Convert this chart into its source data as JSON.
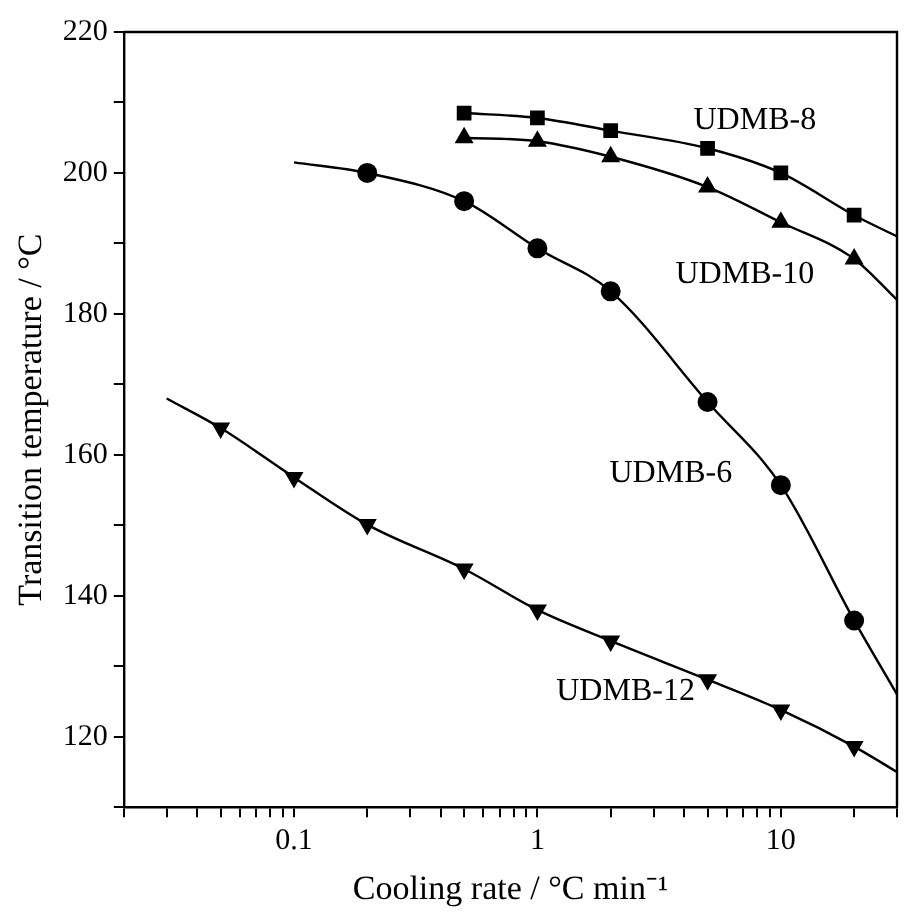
{
  "chart_data": {
    "type": "scatter",
    "xlabel": "Cooling rate / °C min⁻¹",
    "ylabel": "Transition temperature / °C",
    "log": "x",
    "grid": false,
    "legend": false,
    "xlim": [
      0.02,
      30
    ],
    "ylim": [
      110,
      220
    ],
    "xticks": [
      {
        "value": 0.02,
        "label": null
      },
      {
        "value": 0.03,
        "label": null
      },
      {
        "value": 0.04,
        "label": null
      },
      {
        "value": 0.05,
        "label": null
      },
      {
        "value": 0.06,
        "label": null
      },
      {
        "value": 0.07,
        "label": null
      },
      {
        "value": 0.08,
        "label": null
      },
      {
        "value": 0.09,
        "label": null
      },
      0.1,
      {
        "value": 0.2,
        "label": null
      },
      {
        "value": 0.3,
        "label": null
      },
      {
        "value": 0.4,
        "label": null
      },
      {
        "value": 0.5,
        "label": null
      },
      {
        "value": 0.6,
        "label": null
      },
      {
        "value": 0.7,
        "label": null
      },
      {
        "value": 0.8,
        "label": null
      },
      {
        "value": 0.9,
        "label": null
      },
      1,
      {
        "value": 2,
        "label": null
      },
      {
        "value": 3,
        "label": null
      },
      {
        "value": 4,
        "label": null
      },
      {
        "value": 5,
        "label": null
      },
      {
        "value": 6,
        "label": null
      },
      {
        "value": 7,
        "label": null
      },
      {
        "value": 8,
        "label": null
      },
      {
        "value": 9,
        "label": null
      },
      10,
      {
        "value": 20,
        "label": null
      },
      {
        "value": 30,
        "label": null
      }
    ],
    "yticks": [
      {
        "value": 110,
        "label": null
      },
      120,
      {
        "value": 130,
        "label": null
      },
      140,
      {
        "value": 150,
        "label": null
      },
      160,
      {
        "value": 170,
        "label": null
      },
      180,
      {
        "value": 190,
        "label": null
      },
      200,
      {
        "value": 210,
        "label": null
      },
      220
    ],
    "series": [
      {
        "name": "UDMB-8",
        "type": "scatter",
        "marker": "square",
        "color": "#000000",
        "x": [
          0.5,
          1,
          2,
          5,
          10,
          20
        ],
        "values": [
          208.5,
          207.8,
          206,
          203.5,
          200,
          194
        ]
      },
      {
        "name": "UDMB-10",
        "type": "scatter",
        "marker": "triangle",
        "color": "#000000",
        "x": [
          0.5,
          1,
          2,
          5,
          10,
          20
        ],
        "values": [
          205,
          204.5,
          202.3,
          198,
          193,
          187.8
        ]
      },
      {
        "name": "UDMB-6",
        "type": "scatter",
        "marker": "circle",
        "color": "#000000",
        "x": [
          0.2,
          0.5,
          1,
          2,
          5,
          10,
          20
        ],
        "values": [
          200,
          196,
          189.3,
          183.2,
          167.5,
          155.7,
          136.5
        ]
      },
      {
        "name": "UDMB-12",
        "type": "scatter",
        "marker": "triangle_down",
        "color": "#000000",
        "x": [
          0.05,
          0.1,
          0.2,
          0.5,
          1,
          2,
          5,
          10,
          20
        ],
        "values": [
          163.8,
          156.8,
          150.1,
          143.8,
          138,
          133.6,
          128.1,
          123.8,
          118.6
        ]
      },
      {
        "type": "line",
        "marker": "none",
        "color": "#000000",
        "x": [
          0.5,
          1,
          2,
          5,
          10,
          20,
          30
        ],
        "values": [
          208.5,
          207.8,
          206,
          203.5,
          200,
          194,
          191
        ]
      },
      {
        "type": "line",
        "marker": "none",
        "color": "#000000",
        "x": [
          0.5,
          1,
          2,
          5,
          10,
          20,
          30
        ],
        "values": [
          205,
          204.5,
          202.3,
          198,
          193,
          187.8,
          182
        ]
      },
      {
        "type": "line",
        "marker": "none",
        "color": "#000000",
        "x": [
          0.1,
          0.2,
          0.5,
          1,
          2,
          5,
          10,
          20,
          30
        ],
        "values": [
          201.5,
          200,
          196,
          189.3,
          183.2,
          167.5,
          155.7,
          136.5,
          126
        ]
      },
      {
        "type": "line",
        "marker": "none",
        "color": "#000000",
        "x": [
          0.03,
          0.05,
          0.1,
          0.2,
          0.5,
          1,
          2,
          5,
          10,
          20,
          30
        ],
        "values": [
          168,
          163.8,
          156.8,
          150.1,
          143.8,
          138,
          133.6,
          128.1,
          123.8,
          118.6,
          115
        ]
      }
    ]
  }
}
